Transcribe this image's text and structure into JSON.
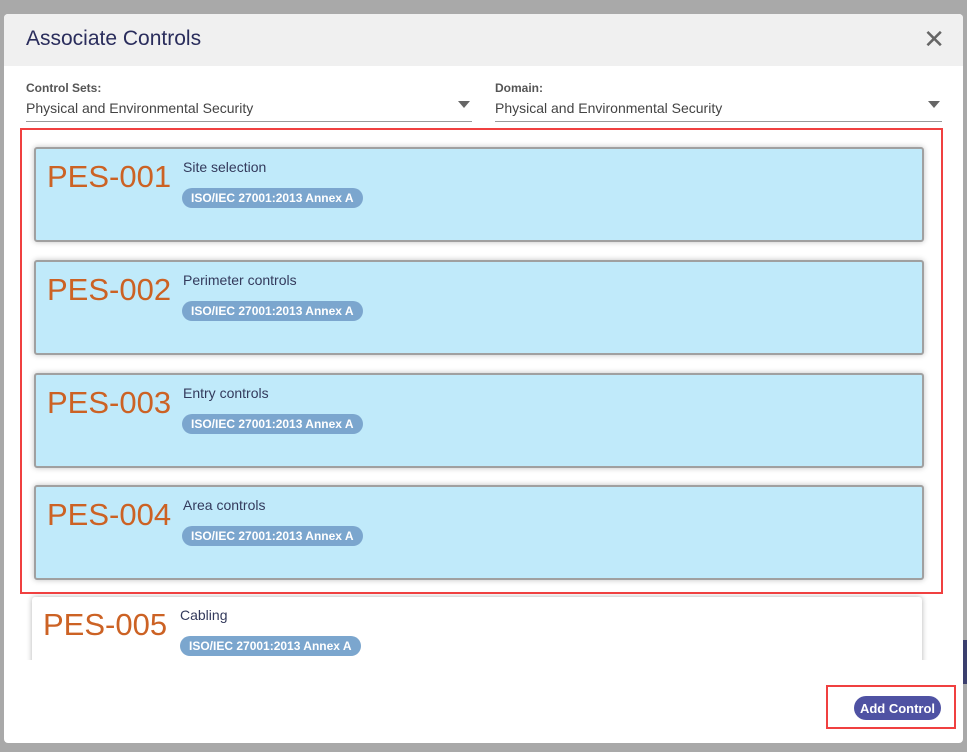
{
  "dialog": {
    "title": "Associate Controls",
    "close_icon": "close-icon"
  },
  "filters": {
    "control_sets": {
      "label": "Control Sets:",
      "value": "Physical and Environmental Security"
    },
    "domain": {
      "label": "Domain:",
      "value": "Physical and Environmental Security"
    }
  },
  "controls": [
    {
      "code": "PES-001",
      "name": "Site selection",
      "badge": "ISO/IEC 27001:2013 Annex A",
      "selected": true
    },
    {
      "code": "PES-002",
      "name": "Perimeter controls",
      "badge": "ISO/IEC 27001:2013 Annex A",
      "selected": true
    },
    {
      "code": "PES-003",
      "name": "Entry controls",
      "badge": "ISO/IEC 27001:2013 Annex A",
      "selected": true
    },
    {
      "code": "PES-004",
      "name": "Area controls",
      "badge": "ISO/IEC 27001:2013 Annex A",
      "selected": true
    },
    {
      "code": "PES-005",
      "name": "Cabling",
      "badge": "ISO/IEC 27001:2013 Annex A",
      "selected": false
    }
  ],
  "footer": {
    "add_label": "Add Control"
  },
  "colors": {
    "selected_card": "#c0eafa",
    "code": "#cc6224",
    "badge": "#7ba6ce",
    "button": "#4f52a3",
    "highlight": "#f04040"
  }
}
